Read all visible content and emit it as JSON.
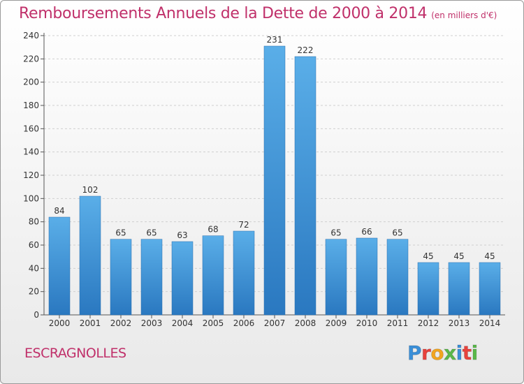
{
  "title": "Remboursements Annuels de la Dette de 2000 à 2014",
  "unit_note": "(en milliers d'€)",
  "commune": "ESCRAGNOLLES",
  "logo": {
    "text": "Proxiti",
    "letter_colors": [
      "#3a8fd8",
      "#e8423c",
      "#f2a51f",
      "#5ab84a",
      "#3a8fd8",
      "#e8423c",
      "#5ab84a"
    ]
  },
  "chart_data": {
    "type": "bar",
    "categories": [
      "2000",
      "2001",
      "2002",
      "2003",
      "2004",
      "2005",
      "2006",
      "2007",
      "2008",
      "2009",
      "2010",
      "2011",
      "2012",
      "2013",
      "2014"
    ],
    "values": [
      84,
      102,
      65,
      65,
      63,
      68,
      72,
      231,
      222,
      65,
      66,
      65,
      45,
      45,
      45
    ],
    "y_ticks": [
      0,
      20,
      40,
      60,
      80,
      100,
      120,
      140,
      160,
      180,
      200,
      220,
      240
    ],
    "ylim": [
      0,
      240
    ],
    "grid": true,
    "bar_color": "#3a8fd8",
    "data_labels": true
  }
}
